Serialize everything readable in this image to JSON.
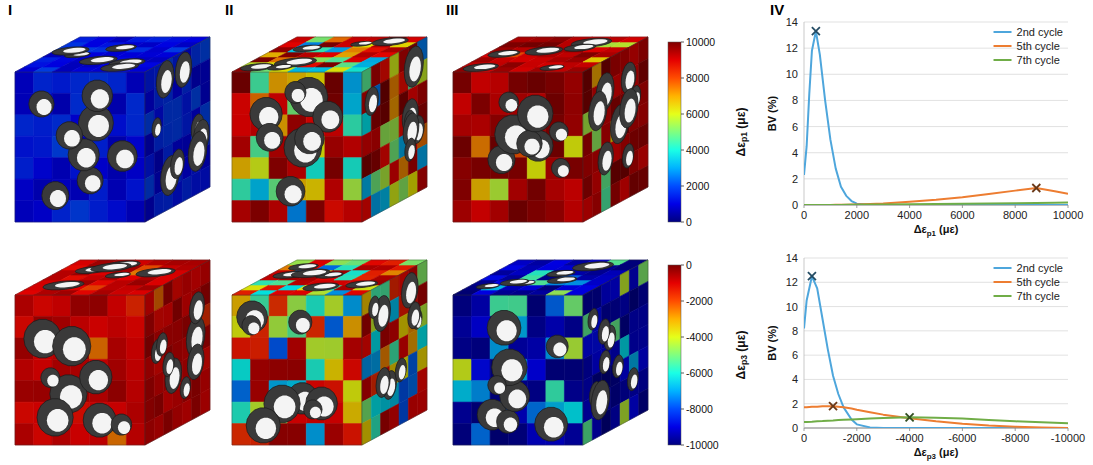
{
  "panel_labels": [
    "I",
    "II",
    "III",
    "IV"
  ],
  "colorbars": [
    {
      "label": "Δεp1 (με)",
      "range": [
        0,
        10000
      ],
      "ticks": [
        0,
        2000,
        4000,
        6000,
        8000,
        10000
      ]
    },
    {
      "label": "Δεp3 (με)",
      "range": [
        -10000,
        0
      ],
      "ticks": [
        0,
        -2000,
        -4000,
        -6000,
        -8000,
        -10000
      ]
    }
  ],
  "chart_data": [
    {
      "type": "line",
      "x_label": "Δεp1 (με)",
      "y_label": "BV (%)",
      "x": [
        0,
        100,
        200,
        300,
        450,
        600,
        800,
        1000,
        1200,
        1400,
        1600,
        1800,
        2000,
        2500,
        3000,
        4000,
        5000,
        6000,
        7000,
        8000,
        8800,
        9500,
        10000
      ],
      "xlim": [
        0,
        10000
      ],
      "xticks": [
        0,
        2000,
        4000,
        6000,
        8000,
        10000
      ],
      "ylim": [
        0,
        14
      ],
      "yticks": [
        0,
        2,
        4,
        6,
        8,
        10,
        12,
        14
      ],
      "grid": true,
      "legend": "upper right",
      "series": [
        {
          "name": "2nd cycle",
          "color": "#4ea6dc",
          "marker": "x",
          "values": [
            2.3,
            4.5,
            8.5,
            11.8,
            13.3,
            11.5,
            8,
            5,
            2.8,
            1.4,
            0.7,
            0.3,
            0.1,
            0.02,
            0,
            0,
            0,
            0,
            0,
            0,
            0,
            0,
            0
          ],
          "peak": {
            "x": 450,
            "y": 13.3
          }
        },
        {
          "name": "5th cycle",
          "color": "#ed7d31",
          "marker": "x",
          "values": [
            0,
            0,
            0,
            0,
            0,
            0,
            0,
            0,
            0.01,
            0.01,
            0.02,
            0.03,
            0.04,
            0.08,
            0.12,
            0.25,
            0.4,
            0.6,
            0.85,
            1.1,
            1.3,
            1.05,
            0.85
          ],
          "peak": {
            "x": 8800,
            "y": 1.3
          }
        },
        {
          "name": "7th cycle",
          "color": "#70ad47",
          "values": [
            0,
            0,
            0,
            0,
            0,
            0,
            0,
            0,
            0,
            0,
            0.01,
            0.01,
            0.02,
            0.03,
            0.04,
            0.06,
            0.08,
            0.1,
            0.12,
            0.14,
            0.16,
            0.18,
            0.2
          ]
        }
      ]
    },
    {
      "type": "line",
      "x_label": "Δεp3 (με)",
      "y_label": "BV (%)",
      "x": [
        0,
        -100,
        -300,
        -500,
        -700,
        -900,
        -1100,
        -1300,
        -1500,
        -1800,
        -2000,
        -2500,
        -3000,
        -4000,
        -5000,
        -6000,
        -7000,
        -8000,
        -9000,
        -10000
      ],
      "xlim": [
        0,
        -10000
      ],
      "xticks": [
        0,
        -2000,
        -4000,
        -6000,
        -8000,
        -10000
      ],
      "ylim": [
        0,
        14
      ],
      "yticks": [
        0,
        2,
        4,
        6,
        8,
        10,
        12,
        14
      ],
      "grid": true,
      "legend": "upper right",
      "series": [
        {
          "name": "2nd cycle",
          "color": "#4ea6dc",
          "marker": "x",
          "values": [
            8.2,
            10.5,
            12.5,
            11.5,
            9,
            6.5,
            4.3,
            2.8,
            1.7,
            0.7,
            0.3,
            0.05,
            0,
            0,
            0,
            0,
            0,
            0,
            0,
            0
          ],
          "peak": {
            "x": -300,
            "y": 12.5
          }
        },
        {
          "name": "5th cycle",
          "color": "#ed7d31",
          "marker": "x",
          "values": [
            1.7,
            1.7,
            1.75,
            1.75,
            1.8,
            1.8,
            1.8,
            1.75,
            1.7,
            1.6,
            1.5,
            1.3,
            1.1,
            0.8,
            0.55,
            0.35,
            0.2,
            0.1,
            0.05,
            0
          ],
          "peak": {
            "x": -1100,
            "y": 1.8
          }
        },
        {
          "name": "7th cycle",
          "color": "#70ad47",
          "marker": "x",
          "values": [
            0.5,
            0.5,
            0.52,
            0.55,
            0.57,
            0.6,
            0.62,
            0.65,
            0.67,
            0.7,
            0.72,
            0.78,
            0.82,
            0.88,
            0.85,
            0.78,
            0.65,
            0.55,
            0.48,
            0.4
          ],
          "peak": {
            "x": -4000,
            "y": 0.88
          }
        }
      ]
    }
  ]
}
